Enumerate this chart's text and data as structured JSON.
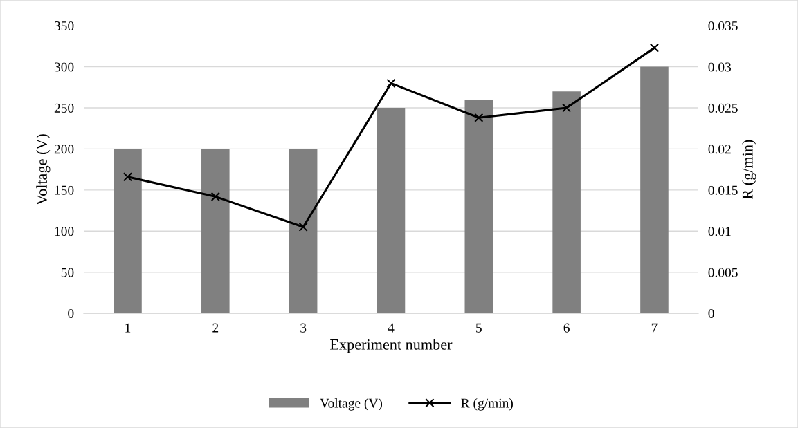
{
  "chart_data": {
    "type": "bar",
    "xlabel": "Experiment number",
    "ylabel": "Voltage (V)",
    "y2label": "R (g/min)",
    "categories": [
      "1",
      "2",
      "3",
      "4",
      "5",
      "6",
      "7"
    ],
    "series": [
      {
        "name": "Voltage (V)",
        "color": "#808080",
        "values": [
          200,
          200,
          200,
          250,
          260,
          270,
          300
        ]
      },
      {
        "name": "R (g/min)",
        "type": "line",
        "axis": "y2",
        "color": "#000000",
        "marker": "cross",
        "values": [
          0.0166,
          0.0142,
          0.0105,
          0.028,
          0.0238,
          0.025,
          0.0323
        ]
      }
    ],
    "ylim": [
      0,
      350
    ],
    "yticks": [
      0,
      50,
      100,
      150,
      200,
      250,
      300,
      350
    ],
    "y2lim": [
      0,
      0.035
    ],
    "y2ticks": [
      0,
      0.005,
      0.01,
      0.015,
      0.02,
      0.025,
      0.03,
      0.035
    ],
    "grid": "y",
    "legend": "bottom"
  }
}
